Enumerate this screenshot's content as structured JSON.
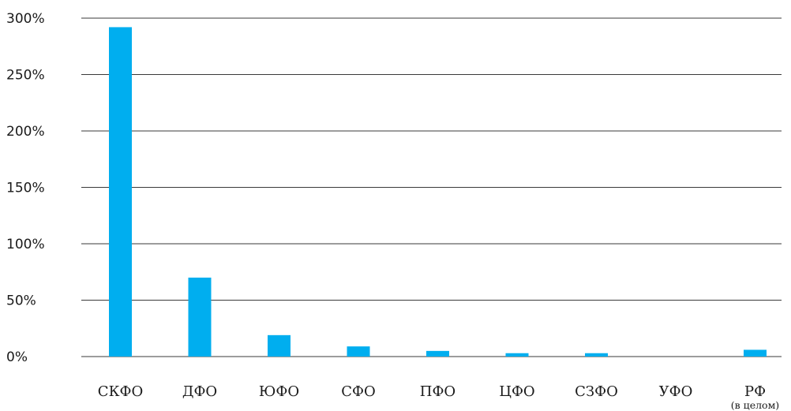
{
  "colors": {
    "bar": "#00aeef",
    "grid": "#3a3a3a",
    "text": "#1a1a1a",
    "background": "#ffffff"
  },
  "chart_data": {
    "type": "bar",
    "title": "",
    "xlabel": "",
    "ylabel": "",
    "categories": [
      "СКФО",
      "ДФО",
      "ЮФО",
      "СФО",
      "ПФО",
      "ЦФО",
      "СЗФО",
      "УФО",
      "РФ"
    ],
    "category_sublabels": [
      "",
      "",
      "",
      "",
      "",
      "",
      "",
      "",
      "(в целом)"
    ],
    "values": [
      292,
      70,
      19,
      9,
      5,
      3,
      3,
      0,
      6
    ],
    "ylim": [
      0,
      300
    ],
    "y_ticks": [
      0,
      50,
      100,
      150,
      200,
      250,
      300
    ],
    "y_tick_labels": [
      "0%",
      "50%",
      "100%",
      "150%",
      "200%",
      "250%",
      "300%"
    ],
    "grid": true,
    "legend": "none"
  }
}
